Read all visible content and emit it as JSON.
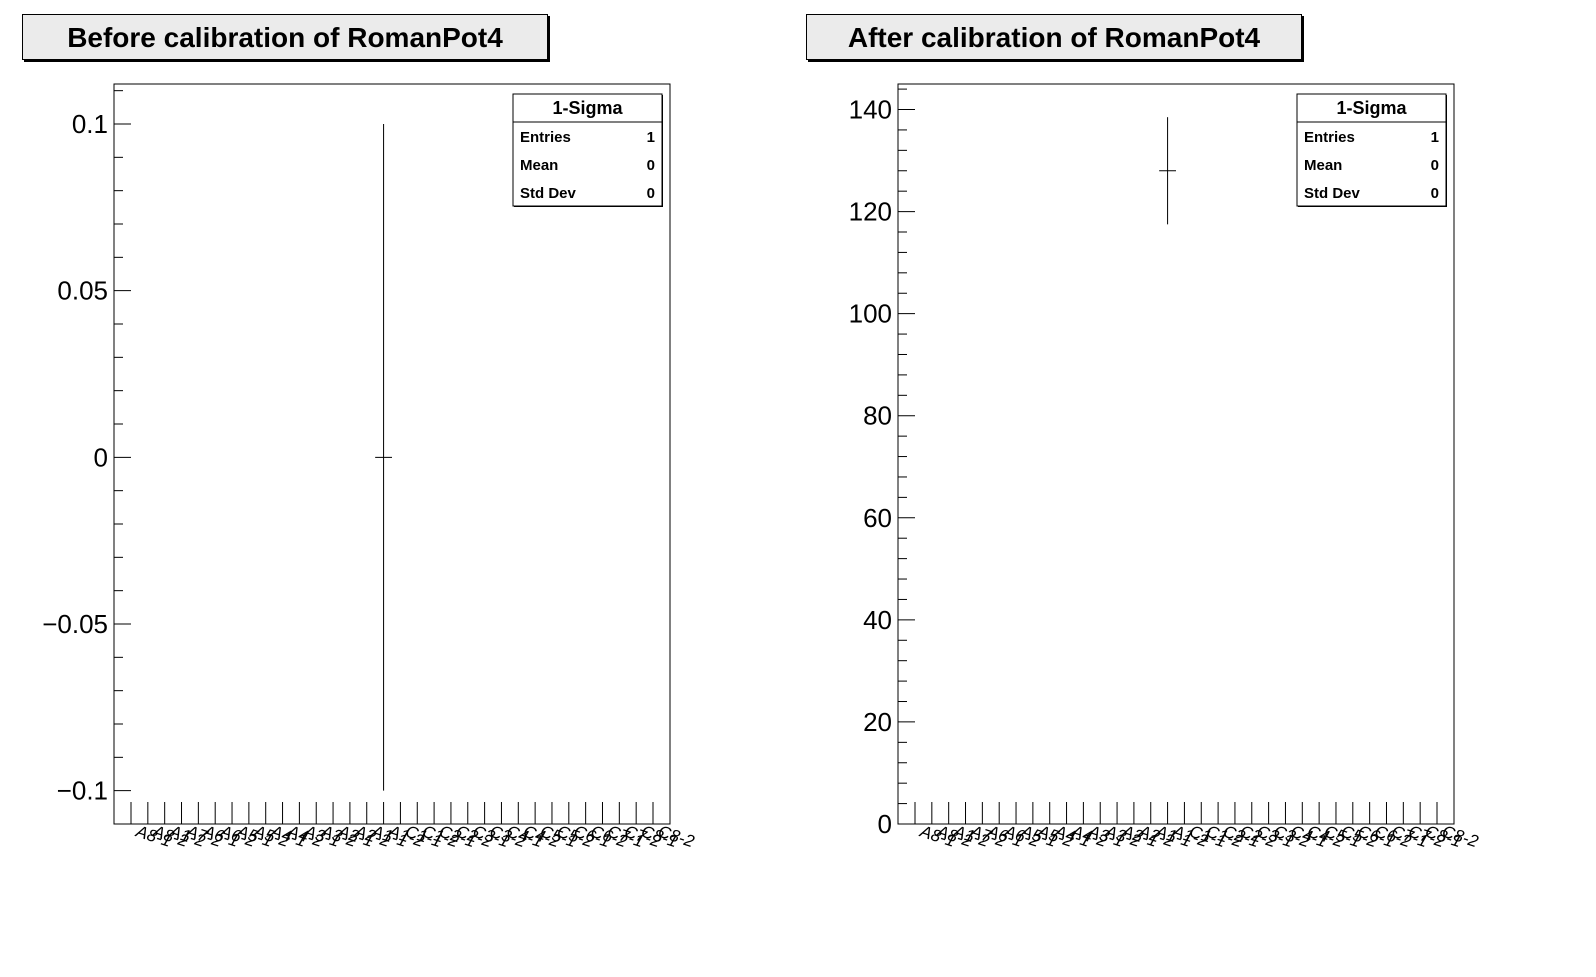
{
  "chart_data": [
    {
      "type": "scatter",
      "title": "Before calibration of RomanPot4",
      "categories": [
        "A8-1",
        "A8-2",
        "A1-2",
        "A7-2",
        "A6-1",
        "A6-2",
        "A5-1",
        "A5-2",
        "A4-1",
        "A4-2",
        "A3-1",
        "A3-2",
        "A2-1",
        "A2-2",
        "A1-1",
        "A1-2",
        "C1-1",
        "C1-2",
        "C2-1",
        "C2-2",
        "C3-1",
        "C3-2",
        "C4-1",
        "C4-2",
        "C5-1",
        "C5-2",
        "C6-1",
        "C6-2",
        "C7-1",
        "C7-2",
        "C8-1",
        "C8-2"
      ],
      "points": [
        {
          "category_index": 15,
          "y": 0,
          "y_error": 0.1
        }
      ],
      "ylim": [
        -0.11,
        0.112
      ],
      "yticks": [
        -0.1,
        -0.05,
        0,
        0.05,
        0.1
      ],
      "ytick_labels": [
        "−0.1",
        "−0.05",
        "0",
        "0.05",
        "0.1"
      ],
      "xlabel": "",
      "ylabel": "",
      "grid": false,
      "stats": {
        "title": "1-Sigma",
        "rows": [
          {
            "label": "Entries",
            "value": "1"
          },
          {
            "label": "Mean",
            "value": "0"
          },
          {
            "label": "Std Dev",
            "value": "0"
          }
        ]
      }
    },
    {
      "type": "scatter",
      "title": "After calibration of RomanPot4",
      "categories": [
        "A8-1",
        "A8-2",
        "A1-2",
        "A7-2",
        "A6-1",
        "A6-2",
        "A5-1",
        "A5-2",
        "A4-1",
        "A4-2",
        "A3-1",
        "A3-2",
        "A2-1",
        "A2-2",
        "A1-1",
        "A1-2",
        "C1-1",
        "C1-2",
        "C2-1",
        "C2-2",
        "C3-1",
        "C3-2",
        "C4-1",
        "C4-2",
        "C5-1",
        "C5-2",
        "C6-1",
        "C6-2",
        "C7-1",
        "C7-2",
        "C8-1",
        "C8-2"
      ],
      "points": [
        {
          "category_index": 15,
          "y": 128,
          "y_error": 10.5
        }
      ],
      "ylim": [
        0,
        145
      ],
      "yticks": [
        0,
        20,
        40,
        60,
        80,
        100,
        120,
        140
      ],
      "ytick_labels": [
        "0",
        "20",
        "40",
        "60",
        "80",
        "100",
        "120",
        "140"
      ],
      "xlabel": "",
      "ylabel": "",
      "grid": false,
      "stats": {
        "title": "1-Sigma",
        "rows": [
          {
            "label": "Entries",
            "value": "1"
          },
          {
            "label": "Mean",
            "value": "0"
          },
          {
            "label": "Std Dev",
            "value": "0"
          }
        ]
      }
    }
  ]
}
